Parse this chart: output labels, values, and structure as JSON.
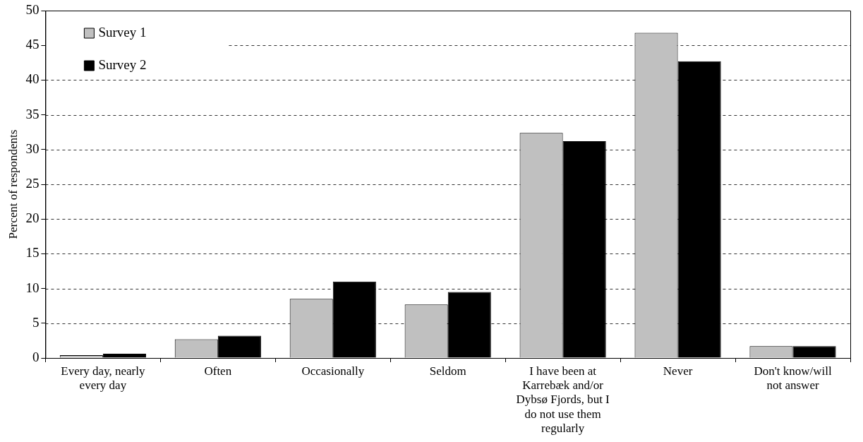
{
  "chart_data": {
    "type": "bar",
    "ylabel": "Percent of respondents",
    "categories": [
      "Every day, nearly every day",
      "Often",
      "Occasionally",
      "Seldom",
      "I have been at Karrebæk and/or Dybsø Fjords, but I do not use them regularly",
      "Never",
      "Don't know/will not answer"
    ],
    "series": [
      {
        "name": "Survey 1",
        "color": "#c0c0c0",
        "values": [
          0.4,
          2.7,
          8.5,
          7.7,
          32.4,
          46.8,
          1.7
        ]
      },
      {
        "name": "Survey 2",
        "color": "#000000",
        "values": [
          0.6,
          3.2,
          11,
          9.5,
          31.2,
          42.7,
          1.7
        ]
      }
    ],
    "ylim": [
      0,
      50
    ],
    "yticks": [
      0,
      5,
      10,
      15,
      20,
      25,
      30,
      35,
      40,
      45,
      50
    ],
    "grid": "y",
    "legend": "top left"
  }
}
